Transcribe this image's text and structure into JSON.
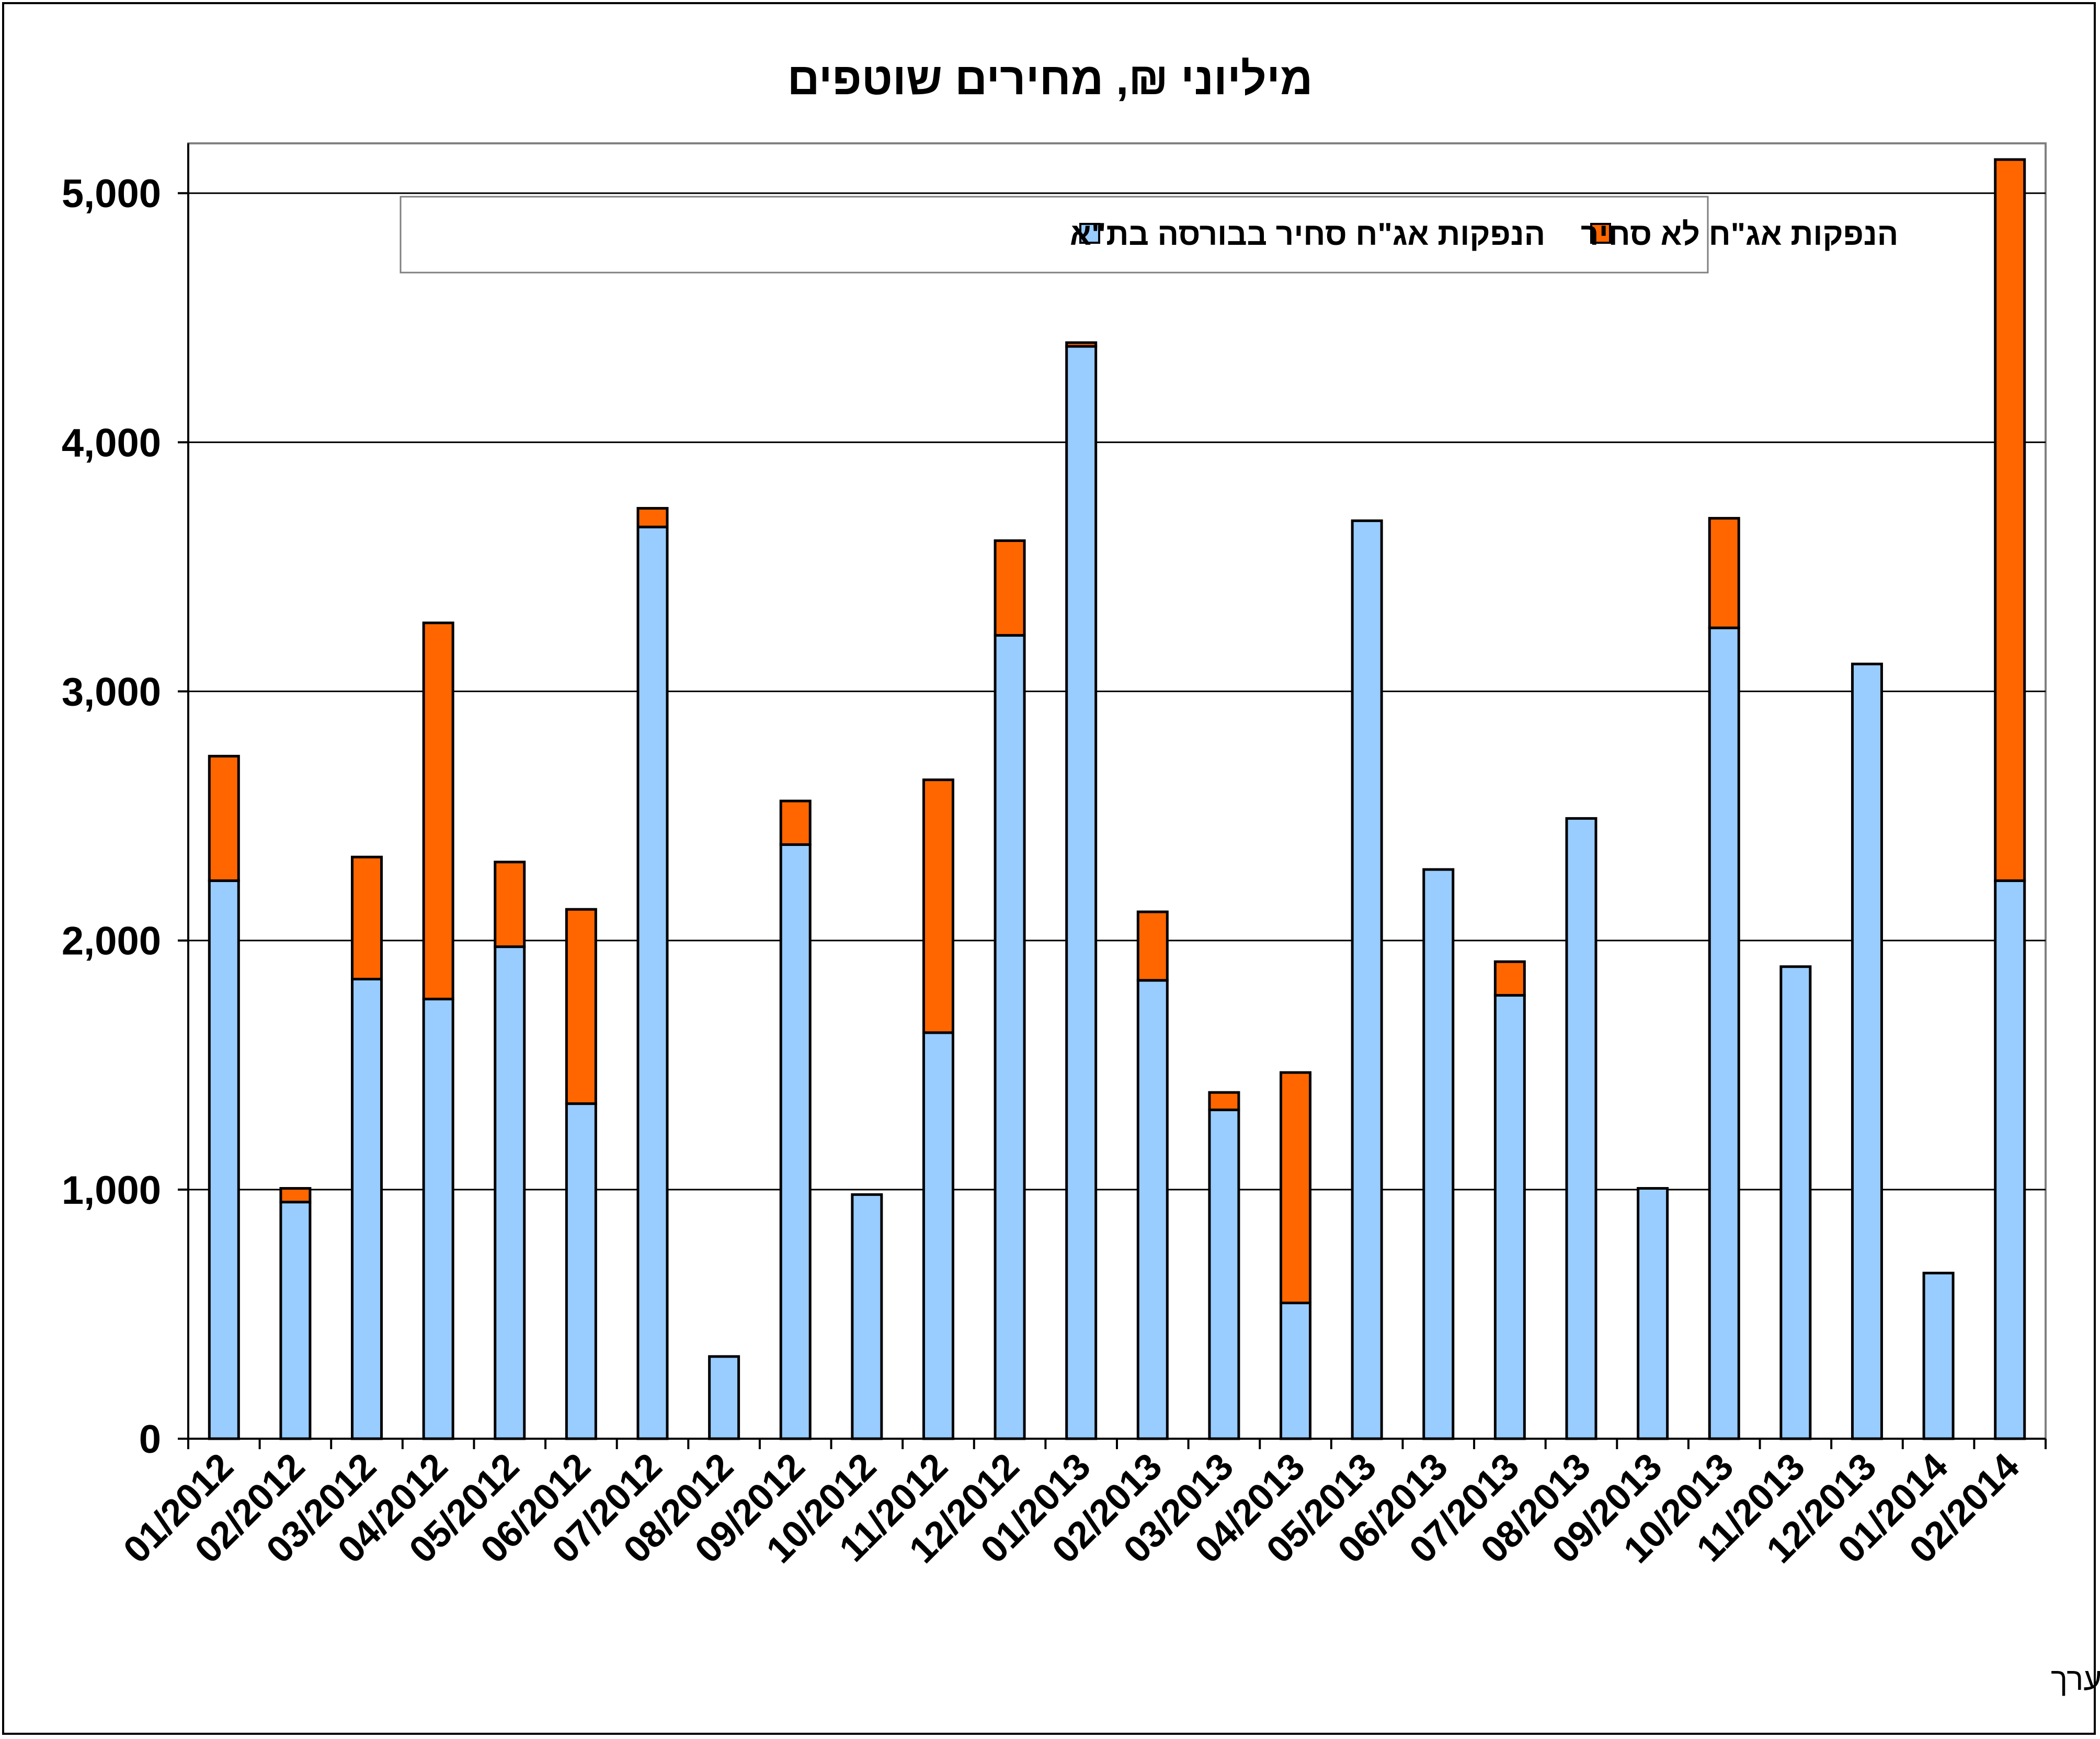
{
  "chart_data": {
    "type": "bar",
    "stacked": true,
    "title": "מיליוני ₪, מחירים שוטפים",
    "source_note": "מקור נתוני אג\"ח סחיר - הבורסה לניירות ערך",
    "categories": [
      "01/2012",
      "02/2012",
      "03/2012",
      "04/2012",
      "05/2012",
      "06/2012",
      "07/2012",
      "08/2012",
      "09/2012",
      "10/2012",
      "11/2012",
      "12/2012",
      "01/2013",
      "02/2013",
      "03/2013",
      "04/2013",
      "05/2013",
      "06/2013",
      "07/2013",
      "08/2013",
      "09/2013",
      "10/2013",
      "11/2013",
      "12/2013",
      "01/2014",
      "02/2014"
    ],
    "series": [
      {
        "name": "הנפקות אג\"ח סחיר בבורסה בת\"א",
        "color": "#99CCFF",
        "values": [
          2240,
          950,
          1845,
          1765,
          1975,
          1345,
          3660,
          330,
          2385,
          980,
          1630,
          3225,
          4385,
          1840,
          1320,
          545,
          3685,
          2285,
          1780,
          2490,
          1005,
          3255,
          1895,
          3110,
          665,
          2240
        ]
      },
      {
        "name": "הנפקות אג\"ח לא סחיר",
        "color": "#FF6600",
        "values": [
          500,
          55,
          490,
          1510,
          340,
          780,
          75,
          0,
          175,
          0,
          1015,
          380,
          15,
          275,
          70,
          925,
          0,
          0,
          135,
          0,
          0,
          440,
          0,
          0,
          0,
          2895
        ]
      }
    ],
    "y_ticks": [
      "0",
      "1,000",
      "2,000",
      "3,000",
      "4,000",
      "5,000"
    ],
    "ylim": [
      0,
      5200
    ],
    "grid": true,
    "legend_position": "top"
  }
}
